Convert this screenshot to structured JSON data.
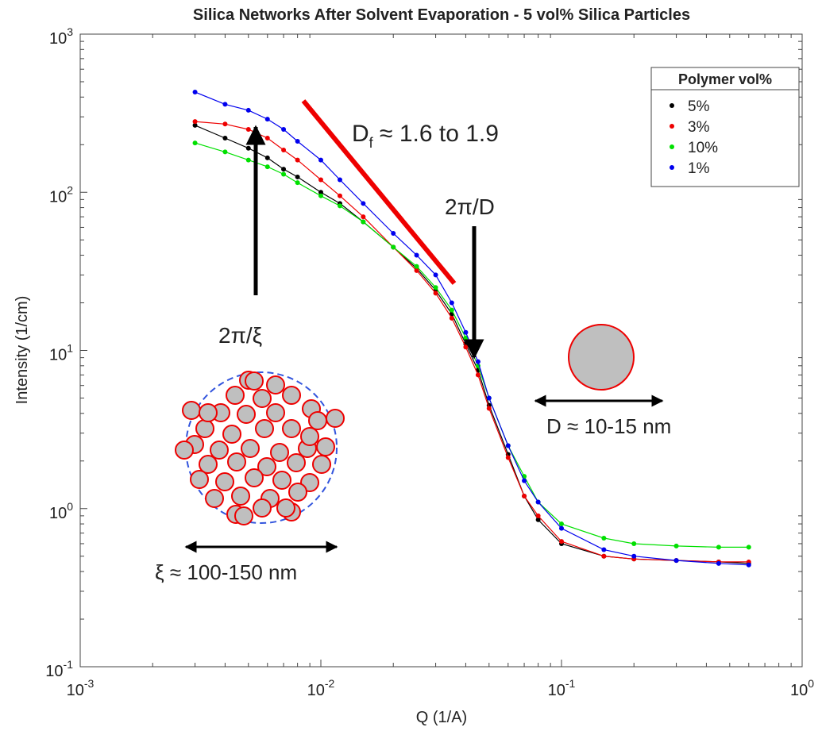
{
  "chart_data": {
    "type": "scatter",
    "title": "Silica Networks After Solvent Evaporation - 5 vol% Silica Particles",
    "x_label": "Q (1/A)",
    "y_label": "Intensity (1/cm)",
    "log_x": true,
    "log_y": true,
    "xlim": [
      0.001,
      1
    ],
    "ylim": [
      0.1,
      1000
    ],
    "xticks": [
      {
        "value": 0.001,
        "label": "10",
        "sup": "-3"
      },
      {
        "value": 0.01,
        "label": "10",
        "sup": "-2"
      },
      {
        "value": 0.1,
        "label": "10",
        "sup": "-1"
      },
      {
        "value": 1,
        "label": "10",
        "sup": "0"
      }
    ],
    "yticks": [
      {
        "value": 0.1,
        "label": "10",
        "sup": "-1"
      },
      {
        "value": 1,
        "label": "10",
        "sup": "0"
      },
      {
        "value": 10,
        "label": "10",
        "sup": "1"
      },
      {
        "value": 100,
        "label": "10",
        "sup": "2"
      },
      {
        "value": 1000,
        "label": "10",
        "sup": "3"
      }
    ],
    "legend_title": "Polymer vol%",
    "legend_position": "upper right",
    "x": [
      0.003,
      0.004,
      0.005,
      0.006,
      0.007,
      0.008,
      0.01,
      0.012,
      0.015,
      0.02,
      0.025,
      0.03,
      0.035,
      0.04,
      0.045,
      0.05,
      0.06,
      0.07,
      0.08,
      0.1,
      0.15,
      0.2,
      0.3,
      0.45,
      0.6
    ],
    "series": [
      {
        "name": "5%",
        "color": "#000000",
        "values": [
          265,
          220,
          190,
          165,
          140,
          125,
          100,
          85,
          65,
          45,
          33,
          24,
          17,
          11,
          7.5,
          4.5,
          2.2,
          1.2,
          0.85,
          0.6,
          0.5,
          0.48,
          0.47,
          0.46,
          0.45
        ]
      },
      {
        "name": "3%",
        "color": "#ee0000",
        "values": [
          280,
          270,
          250,
          220,
          185,
          160,
          120,
          95,
          70,
          45,
          32,
          23,
          16,
          10.5,
          7,
          4.3,
          2.1,
          1.2,
          0.9,
          0.62,
          0.5,
          0.48,
          0.47,
          0.46,
          0.46
        ]
      },
      {
        "name": "10%",
        "color": "#00e000",
        "values": [
          205,
          180,
          160,
          145,
          130,
          115,
          95,
          82,
          65,
          45,
          34,
          25,
          18,
          12,
          8,
          5,
          2.5,
          1.6,
          1.1,
          0.8,
          0.65,
          0.6,
          0.58,
          0.57,
          0.57
        ]
      },
      {
        "name": "1%",
        "color": "#0000ee",
        "values": [
          430,
          360,
          330,
          290,
          250,
          210,
          160,
          120,
          85,
          55,
          40,
          30,
          20,
          13,
          8.5,
          5,
          2.5,
          1.5,
          1.1,
          0.75,
          0.55,
          0.5,
          0.47,
          0.45,
          0.44
        ]
      }
    ],
    "annotations": {
      "slope": {
        "main": "D",
        "sub": "f",
        "rest": " ≈ 1.6 to 1.9"
      },
      "particle_peak": "2π/D",
      "cluster_peak": "2π/ξ",
      "particle_size": "D ≈ 10-15 nm",
      "cluster_size": "ξ ≈ 100-150 nm"
    }
  }
}
